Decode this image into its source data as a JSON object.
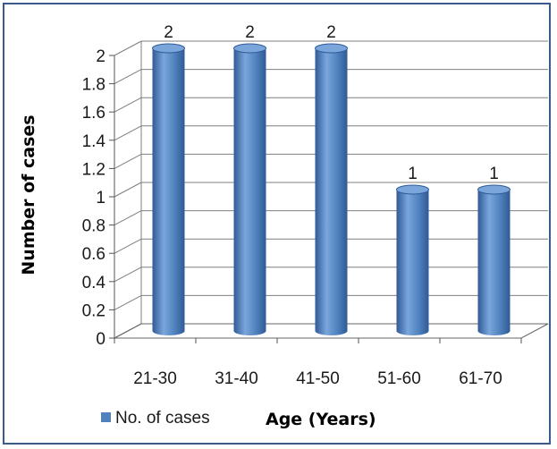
{
  "chart_data": {
    "type": "bar",
    "style": "3d-cylinder",
    "categories": [
      "21-30",
      "31-40",
      "41-50",
      "51-60",
      "61-70"
    ],
    "series": [
      {
        "name": "No. of cases",
        "values": [
          2,
          2,
          2,
          1,
          1
        ]
      }
    ],
    "data_labels": [
      "2",
      "2",
      "2",
      "1",
      "1"
    ],
    "xlabel": "Age (Years)",
    "ylabel": "Number of cases",
    "ylim": [
      0,
      2
    ],
    "yticks": [
      "0",
      "0.2",
      "0.4",
      "0.6",
      "0.8",
      "1",
      "1.2",
      "1.4",
      "1.6",
      "1.8",
      "2"
    ],
    "grid": true,
    "legend_position": "bottom-left",
    "colors": {
      "bar": "#4f81bd",
      "bar_dark": "#2f5a96",
      "bar_light": "#7aa6dc",
      "grid": "#7f7f7f",
      "border": "#3b5a8c"
    }
  }
}
